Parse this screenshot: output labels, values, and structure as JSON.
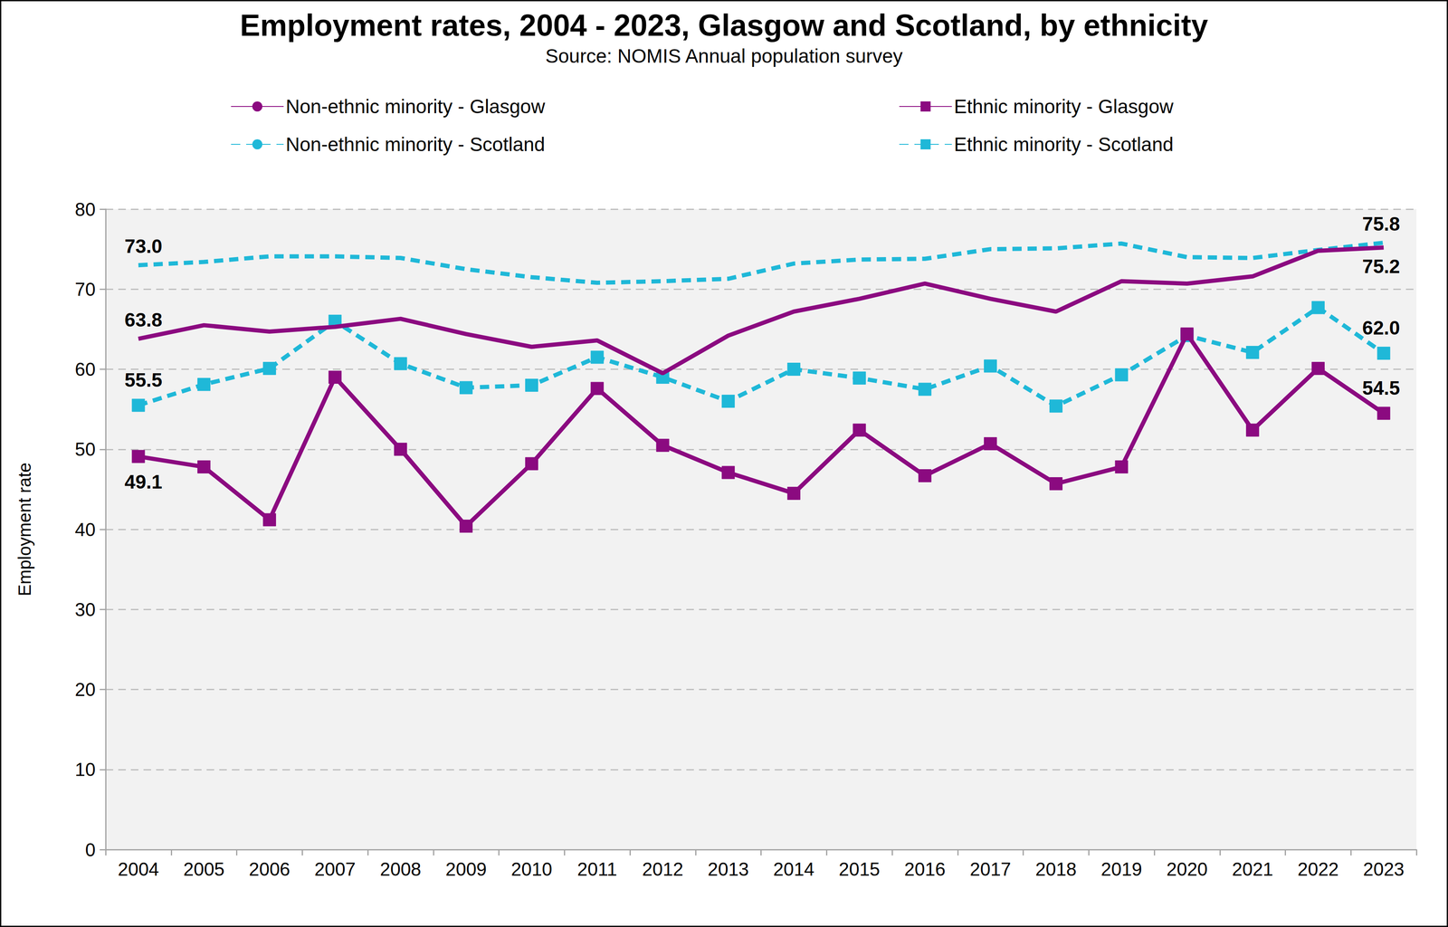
{
  "chart_data": {
    "type": "line",
    "title": "Employment rates, 2004 - 2023, Glasgow and Scotland, by ethnicity",
    "subtitle": "Source: NOMIS Annual population survey",
    "y_label": "Employment rate",
    "categories": [
      "2004",
      "2005",
      "2006",
      "2007",
      "2008",
      "2009",
      "2010",
      "2011",
      "2012",
      "2013",
      "2014",
      "2015",
      "2016",
      "2017",
      "2018",
      "2019",
      "2020",
      "2021",
      "2022",
      "2023"
    ],
    "series": [
      {
        "name": "Non-ethnic minority - Glasgow",
        "color": "#8b0a80",
        "marker": "none",
        "line_style": "solid",
        "values": [
          63.8,
          65.5,
          64.7,
          65.3,
          66.3,
          64.4,
          62.8,
          63.6,
          59.5,
          64.2,
          67.2,
          68.8,
          70.7,
          68.8,
          67.2,
          71.0,
          70.7,
          71.6,
          74.8,
          75.2
        ],
        "value_labels": [
          "63.8",
          null,
          null,
          null,
          null,
          null,
          null,
          null,
          null,
          null,
          null,
          null,
          null,
          null,
          null,
          null,
          null,
          null,
          null,
          "75.2"
        ]
      },
      {
        "name": "Ethnic minority - Glasgow",
        "color": "#8b0a80",
        "marker": "square",
        "line_style": "solid",
        "values": [
          49.1,
          47.8,
          41.2,
          59.0,
          50.0,
          40.4,
          48.2,
          57.6,
          50.5,
          47.1,
          44.5,
          52.4,
          46.7,
          50.7,
          45.7,
          47.8,
          64.4,
          52.4,
          60.1,
          54.5
        ],
        "value_labels": [
          "49.1",
          null,
          null,
          null,
          null,
          null,
          null,
          null,
          null,
          null,
          null,
          null,
          null,
          null,
          null,
          null,
          null,
          null,
          null,
          "54.5"
        ]
      },
      {
        "name": "Non-ethnic minority - Scotland",
        "color": "#1fb8d8",
        "marker": "none",
        "line_style": "dashed",
        "values": [
          73.0,
          73.4,
          74.1,
          74.1,
          73.9,
          72.5,
          71.5,
          70.8,
          71.0,
          71.3,
          73.2,
          73.7,
          73.8,
          75.0,
          75.1,
          75.7,
          74.0,
          73.9,
          74.9,
          75.8
        ],
        "value_labels": [
          "73.0",
          null,
          null,
          null,
          null,
          null,
          null,
          null,
          null,
          null,
          null,
          null,
          null,
          null,
          null,
          null,
          null,
          null,
          null,
          "75.8"
        ]
      },
      {
        "name": "Ethnic minority - Scotland",
        "color": "#1fb8d8",
        "marker": "square",
        "line_style": "dashed",
        "values": [
          55.5,
          58.1,
          60.1,
          66.0,
          60.7,
          57.7,
          58.0,
          61.5,
          59.0,
          56.0,
          60.0,
          58.9,
          57.5,
          60.4,
          55.4,
          59.3,
          64.2,
          62.1,
          67.7,
          62.0
        ],
        "value_labels": [
          "55.5",
          null,
          null,
          null,
          null,
          null,
          null,
          null,
          null,
          null,
          null,
          null,
          null,
          null,
          null,
          null,
          null,
          null,
          null,
          "62.0"
        ]
      }
    ],
    "ylim": [
      0,
      80
    ],
    "yticks": [
      0,
      10,
      20,
      30,
      40,
      50,
      60,
      70,
      80
    ],
    "grid": true
  }
}
